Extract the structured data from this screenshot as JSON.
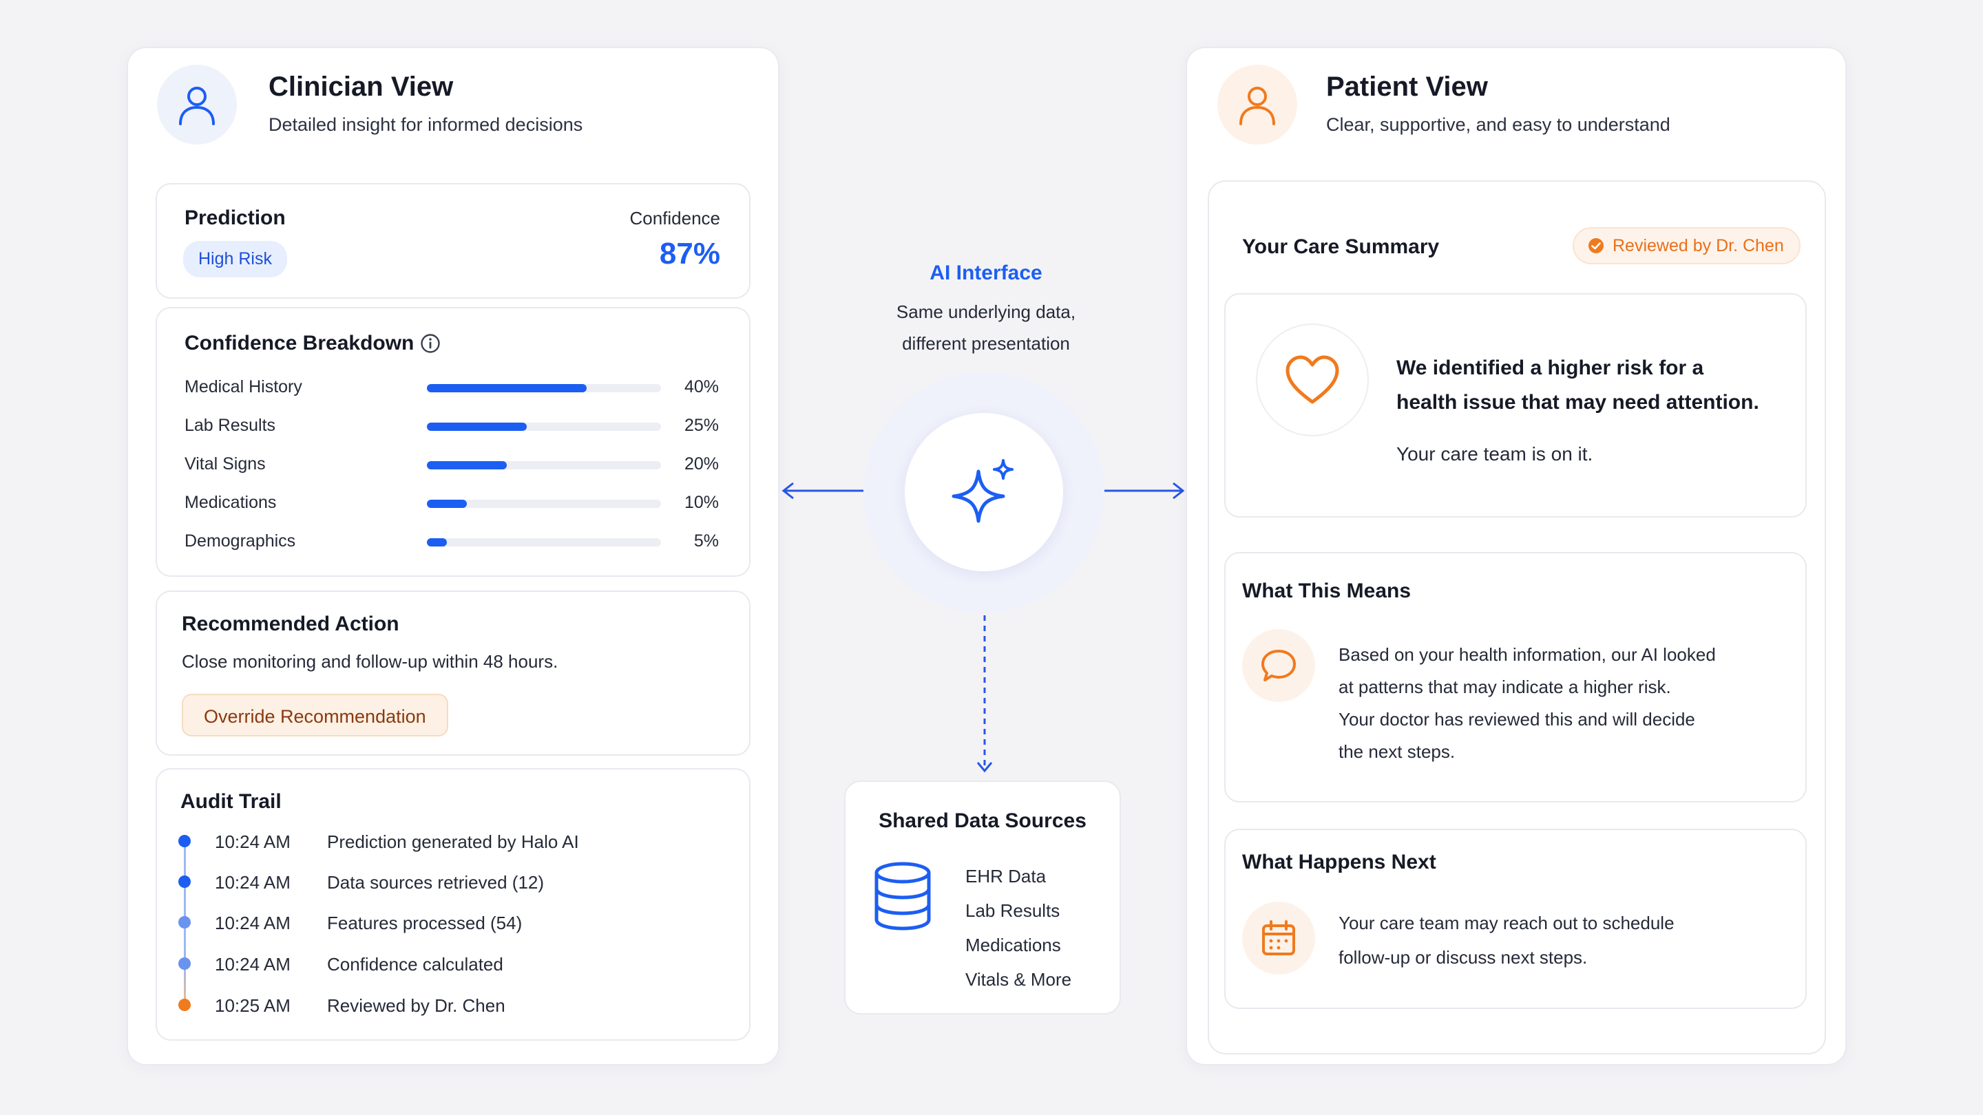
{
  "colors": {
    "accent_blue": "#1c5ef2",
    "accent_orange": "#f07a1e",
    "background": "#f3f3f6"
  },
  "clinician": {
    "title": "Clinician View",
    "subtitle": "Detailed insight for informed decisions",
    "avatar_icon": "user-icon",
    "prediction": {
      "label": "Prediction",
      "risk_badge": "High Risk",
      "confidence_label": "Confidence",
      "confidence_value": "87%"
    },
    "breakdown": {
      "title": "Confidence Breakdown",
      "info_icon": "info-icon",
      "rows": [
        {
          "label": "Medical History",
          "value": 40,
          "pct": "40%"
        },
        {
          "label": "Lab Results",
          "value": 25,
          "pct": "25%"
        },
        {
          "label": "Vital Signs",
          "value": 20,
          "pct": "20%"
        },
        {
          "label": "Medications",
          "value": 10,
          "pct": "10%"
        },
        {
          "label": "Demographics",
          "value": 5,
          "pct": "5%"
        }
      ]
    },
    "recommended": {
      "title": "Recommended Action",
      "text": "Close monitoring and follow-up within 48 hours.",
      "override_button": "Override Recommendation"
    },
    "audit": {
      "title": "Audit Trail",
      "entries": [
        {
          "time": "10:24 AM",
          "text": "Prediction generated by Halo AI"
        },
        {
          "time": "10:24 AM",
          "text": "Data sources retrieved (12)"
        },
        {
          "time": "10:24 AM",
          "text": "Features processed (54)"
        },
        {
          "time": "10:24 AM",
          "text": "Confidence calculated"
        },
        {
          "time": "10:25 AM",
          "text": "Reviewed by Dr. Chen"
        }
      ]
    }
  },
  "center": {
    "title": "AI Interface",
    "line1": "Same underlying data,",
    "line2": "different presentation",
    "hub_icon": "sparkle-icon",
    "shared": {
      "title": "Shared Data Sources",
      "icon": "database-icon",
      "items": [
        "EHR Data",
        "Lab Results",
        "Medications",
        "Vitals & More"
      ]
    }
  },
  "patient": {
    "title": "Patient View",
    "subtitle": "Clear, supportive, and easy to understand",
    "avatar_icon": "user-icon",
    "care_summary": {
      "title": "Your Care Summary",
      "reviewed_badge": "Reviewed by Dr. Chen",
      "heading_line1": "We identified a higher risk for a",
      "heading_line2": "health issue that may need attention.",
      "reassurance": "Your care team is on it."
    },
    "what_means": {
      "title": "What This Means",
      "lines": [
        "Based on your health information, our AI looked",
        "at patterns that may indicate a higher risk.",
        "Your doctor has reviewed this and will decide",
        "the next steps."
      ]
    },
    "what_next": {
      "title": "What Happens Next",
      "lines": [
        "Your care team may reach out to schedule",
        "follow-up or discuss next steps."
      ]
    }
  }
}
